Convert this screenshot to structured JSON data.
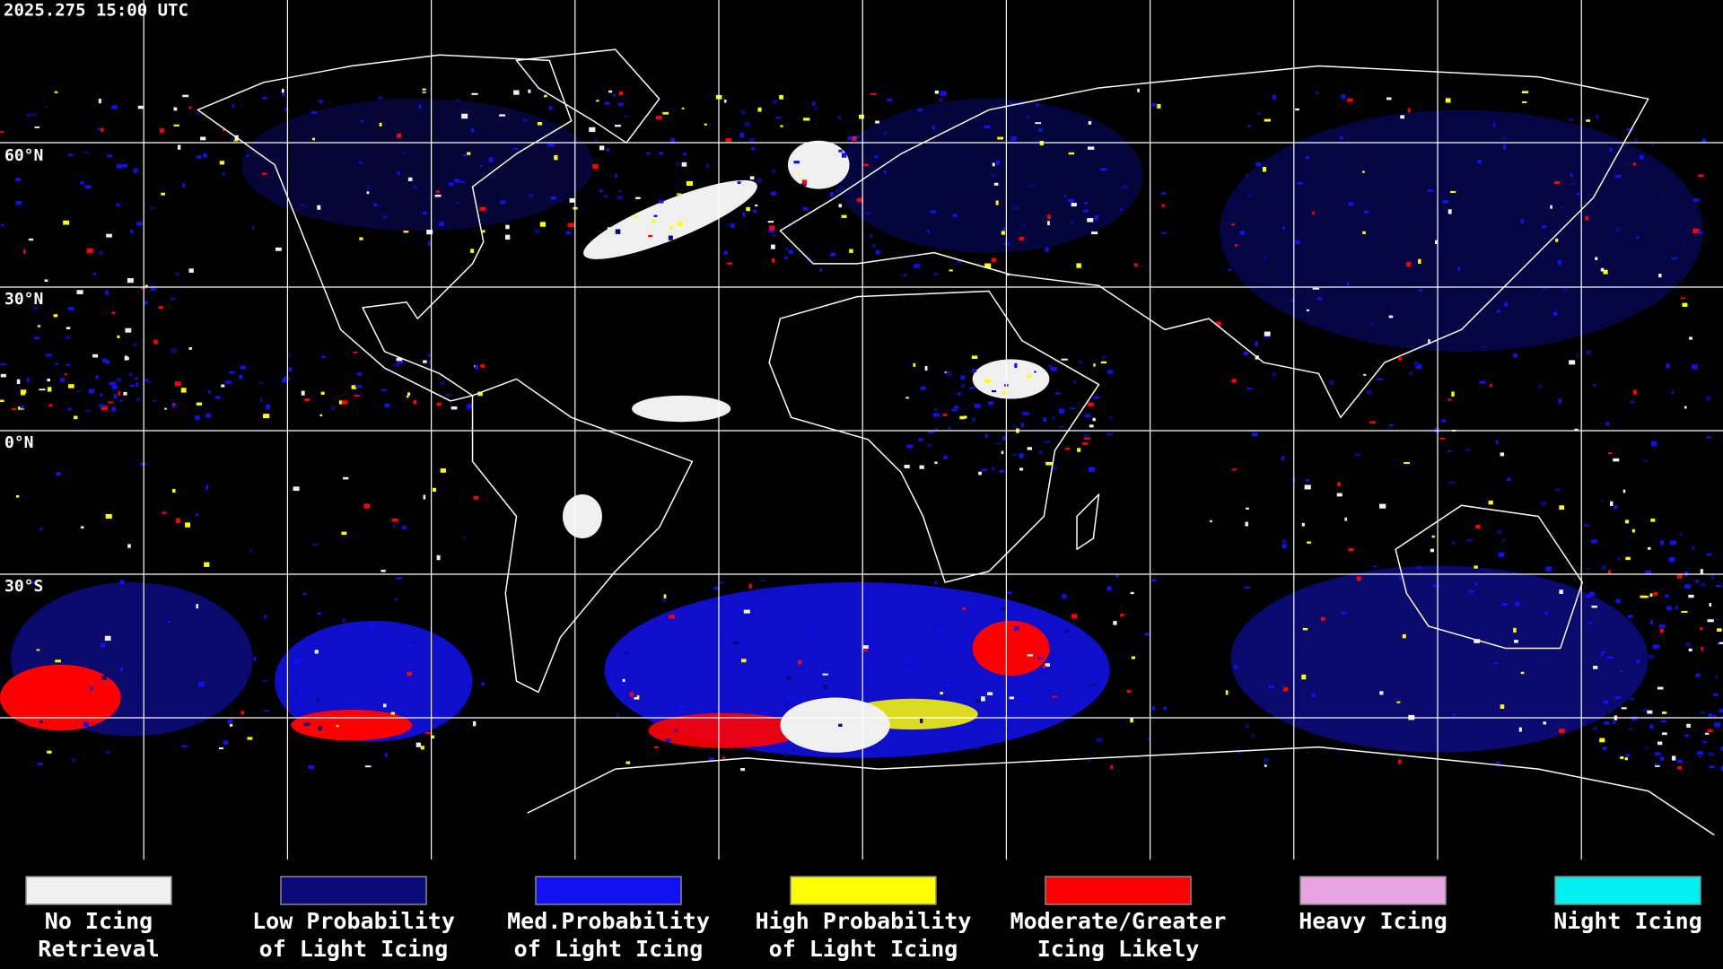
{
  "timestamp": "2025.275 15:00 UTC",
  "latitude_labels": [
    "60°N",
    "30°N",
    "0°N",
    "30°S"
  ],
  "legend": [
    {
      "label": [
        "No Icing",
        "Retrieval"
      ],
      "color": "#f0f0f0"
    },
    {
      "label": [
        "Low Probability",
        "of Light Icing"
      ],
      "color": "#0a0a7a"
    },
    {
      "label": [
        "Med.Probability",
        "of Light Icing"
      ],
      "color": "#1010f0"
    },
    {
      "label": [
        "High Probability",
        "of Light Icing"
      ],
      "color": "#ffff00"
    },
    {
      "label": [
        "Moderate/Greater",
        "Icing Likely"
      ],
      "color": "#ff0000"
    },
    {
      "label": [
        "Heavy Icing"
      ],
      "color": "#e8a4e0"
    },
    {
      "label": [
        "Night Icing"
      ],
      "color": "#00f0f0"
    }
  ]
}
